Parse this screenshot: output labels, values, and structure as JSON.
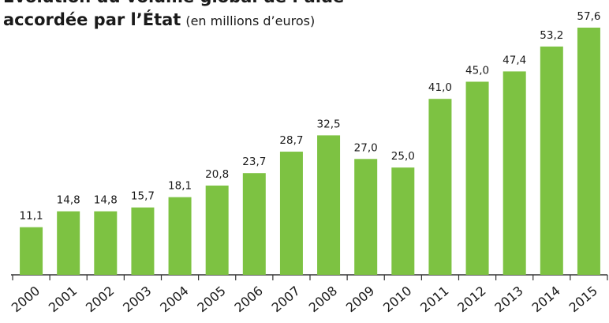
{
  "chart_data": {
    "type": "bar",
    "title": "Évolution du volume global de l’aide",
    "title_line2": "accordée par l’État",
    "subtitle": "(en millions d’euros)",
    "categories": [
      "2000",
      "2001",
      "2002",
      "2003",
      "2004",
      "2005",
      "2006",
      "2007",
      "2008",
      "2009",
      "2010",
      "2011",
      "2012",
      "2013",
      "2014",
      "2015"
    ],
    "values": [
      11.1,
      14.8,
      14.8,
      15.7,
      18.1,
      20.8,
      23.7,
      28.7,
      32.5,
      27.0,
      25.0,
      41.0,
      45.0,
      47.4,
      53.2,
      57.6
    ],
    "value_labels": [
      "11,1",
      "14,8",
      "14,8",
      "15,7",
      "18,1",
      "20,8",
      "23,7",
      "28,7",
      "32,5",
      "27,0",
      "25,0",
      "41,0",
      "45,0",
      "47,4",
      "53,2",
      "57,6"
    ],
    "color": "#7dc242"
  }
}
